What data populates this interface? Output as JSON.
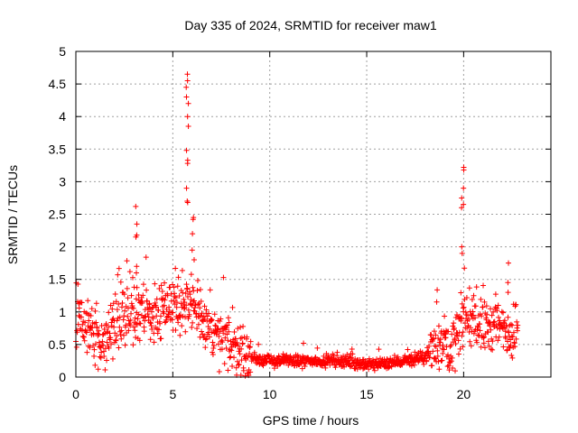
{
  "chart_data": {
    "type": "scatter",
    "title": "Day 335 of 2024, SRMTID for receiver maw1",
    "xlabel": "GPS time / hours",
    "ylabel": "SRMTID / TECUs",
    "xlim": [
      0,
      24.5
    ],
    "ylim": [
      0,
      5
    ],
    "xticks": [
      0,
      5,
      10,
      15,
      20
    ],
    "yticks": [
      0,
      0.5,
      1,
      1.5,
      2,
      2.5,
      3,
      3.5,
      4,
      4.5,
      5
    ],
    "xtick_labels": [
      "0",
      "5",
      "10",
      "15",
      "20"
    ],
    "ytick_labels": [
      "0",
      "0.5",
      "1",
      "1.5",
      "2",
      "2.5",
      "3",
      "3.5",
      "4",
      "4.5",
      "5"
    ],
    "grid": true,
    "marker": "+",
    "color": "#ff0000",
    "profile": {
      "x": [
        0.0,
        0.2,
        0.5,
        1.0,
        1.5,
        2.0,
        2.5,
        3.0,
        3.5,
        4.0,
        4.5,
        5.0,
        5.5,
        6.0,
        6.5,
        7.0,
        7.5,
        8.0,
        8.5,
        9.0,
        10.0,
        11.0,
        12.0,
        13.0,
        14.0,
        15.0,
        16.0,
        17.0,
        18.0,
        18.5,
        19.0,
        19.5,
        20.0,
        20.5,
        21.0,
        21.5,
        22.0,
        22.5,
        22.8
      ],
      "y": [
        0.9,
        0.85,
        0.75,
        0.65,
        0.55,
        0.85,
        0.95,
        1.05,
        1.0,
        0.95,
        1.0,
        1.05,
        1.2,
        1.15,
        0.8,
        0.7,
        0.55,
        0.5,
        0.4,
        0.3,
        0.25,
        0.25,
        0.25,
        0.25,
        0.25,
        0.18,
        0.22,
        0.25,
        0.3,
        0.5,
        0.55,
        0.5,
        0.9,
        0.85,
        0.75,
        0.8,
        0.75,
        0.7,
        0.8
      ]
    },
    "spikes": [
      {
        "x": 3.1,
        "values": [
          2.62,
          2.35,
          2.18,
          2.15,
          1.7,
          1.6
        ]
      },
      {
        "x": 5.75,
        "values": [
          4.65,
          4.55,
          4.45,
          4.3,
          4.2,
          4.0,
          3.85,
          3.48,
          3.33,
          3.28,
          2.9,
          2.7,
          2.68
        ]
      },
      {
        "x": 6.05,
        "values": [
          2.45,
          2.42,
          2.2,
          1.95,
          1.8
        ]
      },
      {
        "x": 19.95,
        "values": [
          3.22,
          3.18,
          2.9,
          2.75,
          2.65,
          2.6,
          2.0,
          1.9
        ]
      },
      {
        "x": 22.3,
        "values": [
          1.75,
          1.45,
          1.3
        ]
      }
    ]
  }
}
